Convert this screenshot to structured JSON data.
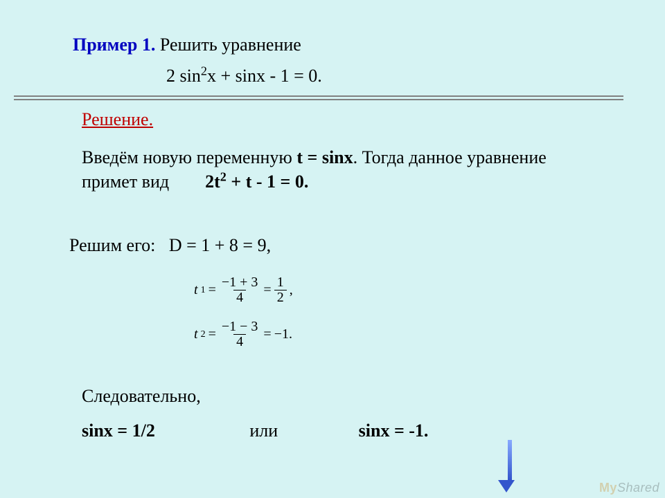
{
  "colors": {
    "background": "#d6f3f3",
    "heading_blue": "#0000c0",
    "solution_red": "#c00000",
    "rule_gray": "#808080",
    "text": "#000000",
    "arrow_top": "#88aaff",
    "arrow_bottom": "#3355cc"
  },
  "typography": {
    "family": "Times New Roman",
    "body_size_pt": 20,
    "math_small_size_pt": 15
  },
  "heading": {
    "label": "Пример 1.",
    "rest": " Решить уравнение"
  },
  "equation": {
    "prefix": "2 sin",
    "sup": "2",
    "suffix": "x + sinx - 1 = 0."
  },
  "solution_label": "Решение.",
  "intro": {
    "part1": "Введём новую переменную ",
    "subst_bold": "t = sinx",
    "part2": ". Тогда данное уравнение примет вид",
    "gap": "        ",
    "quad_bold": "2t",
    "quad_sup": "2",
    "quad_tail_bold": " + t - 1 = 0."
  },
  "solve": {
    "label": "Решим его:",
    "gap": "   ",
    "disc": "D = 1 + 8 = 9,"
  },
  "t1": {
    "lhs_var": "t",
    "lhs_sub": "1",
    "eq1": "=",
    "num1": "−1 + 3",
    "den1": "4",
    "eq2": "=",
    "num2": "1",
    "den2": "2",
    "tail": ","
  },
  "t2": {
    "lhs_var": "t",
    "lhs_sub": "2",
    "eq1": "=",
    "num1": "−1 − 3",
    "den1": "4",
    "eq2": "=",
    "rhs": "−1.",
    "tail": ""
  },
  "consequently": "Следовательно,",
  "results": {
    "left": "sinx = 1/2",
    "or": "или",
    "right": "sinx = -1."
  },
  "watermark": {
    "my": "My",
    "shared": "Shared"
  }
}
